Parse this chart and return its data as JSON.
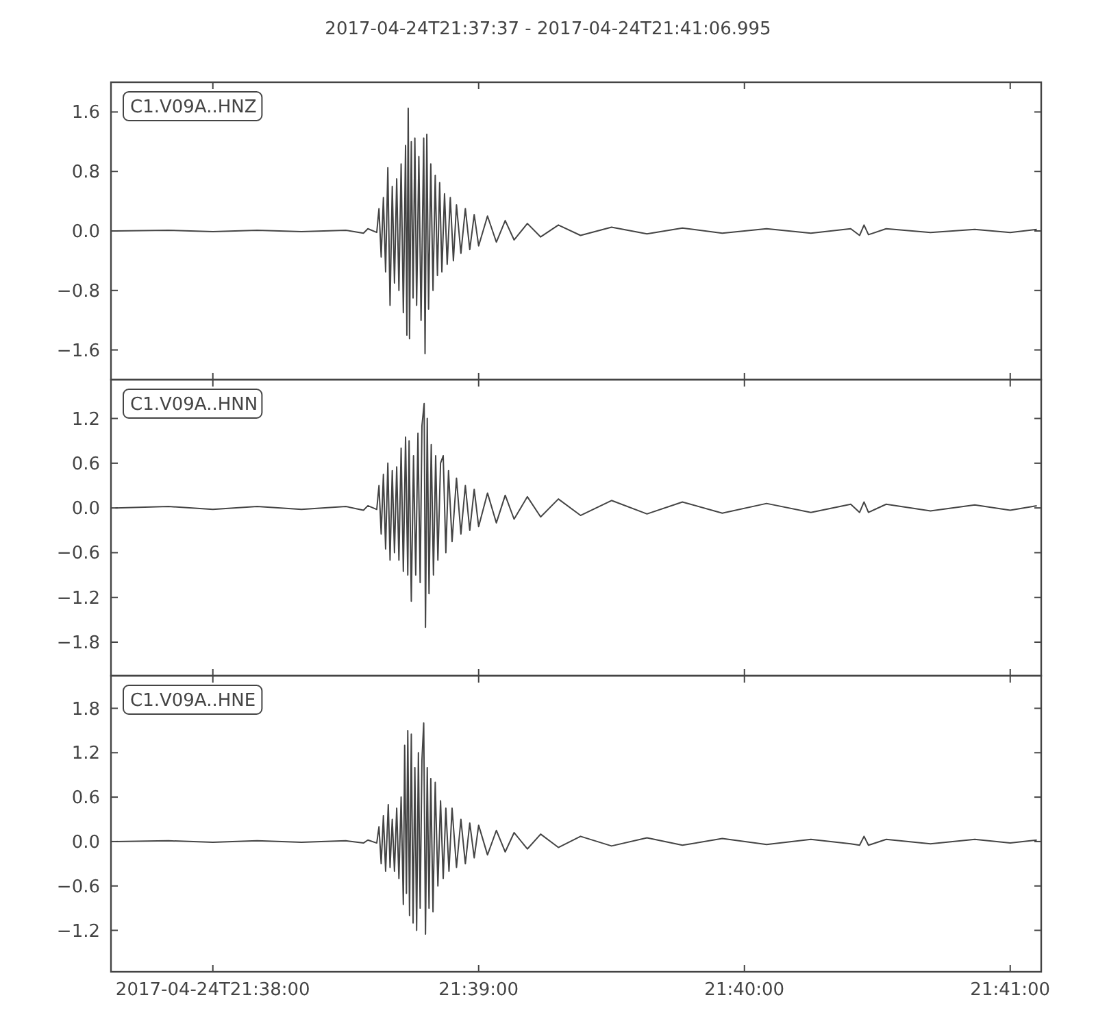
{
  "chart_data": [
    {
      "type": "line",
      "title": "2017-04-24T21:37:37  -  2017-04-24T21:41:06.995",
      "legend": "top left",
      "grid": false,
      "marker": "none",
      "tick_labels": "y",
      "xlim": [
        "2017-04-24T21:37:37",
        "2017-04-24T21:41:06.995"
      ],
      "xticks": [
        {
          "value": "2017-04-24T21:38:00",
          "label": null
        },
        {
          "value": "2017-04-24T21:39:00",
          "label": null
        },
        {
          "value": "2017-04-24T21:40:00",
          "label": null
        },
        {
          "value": "2017-04-24T21:41:00",
          "label": null
        }
      ],
      "ylim": [
        -2.0,
        2.0
      ],
      "yticks": [
        {
          "value": -1.6,
          "label": "−1.6"
        },
        {
          "value": -0.8,
          "label": "−0.8"
        },
        {
          "value": 0,
          "label": "0.0"
        },
        0.8,
        1.6
      ],
      "series": [
        {
          "name": "C1.V09A..HNZ",
          "color": "#444444",
          "x": [
            "2017-04-24T21:37:38",
            "2017-04-24T21:37:50",
            "2017-04-24T21:38:00",
            "2017-04-24T21:38:10",
            "2017-04-24T21:38:20",
            "2017-04-24T21:38:30",
            "2017-04-24T21:38:34",
            "2017-04-24T21:38:35",
            "2017-04-24T21:38:37",
            "2017-04-24T21:38:37.5",
            "2017-04-24T21:38:38",
            "2017-04-24T21:38:38.5",
            "2017-04-24T21:38:39",
            "2017-04-24T21:38:39.5",
            "2017-04-24T21:38:40",
            "2017-04-24T21:38:40.5",
            "2017-04-24T21:38:41",
            "2017-04-24T21:38:41.5",
            "2017-04-24T21:38:42",
            "2017-04-24T21:38:42.5",
            "2017-04-24T21:38:43",
            "2017-04-24T21:38:43.5",
            "2017-04-24T21:38:43.8",
            "2017-04-24T21:38:44.1",
            "2017-04-24T21:38:44.4",
            "2017-04-24T21:38:44.8",
            "2017-04-24T21:38:45.2",
            "2017-04-24T21:38:45.6",
            "2017-04-24T21:38:46",
            "2017-04-24T21:38:46.5",
            "2017-04-24T21:38:47",
            "2017-04-24T21:38:47.6",
            "2017-04-24T21:38:47.9",
            "2017-04-24T21:38:48.3",
            "2017-04-24T21:38:48.7",
            "2017-04-24T21:38:49.2",
            "2017-04-24T21:38:49.7",
            "2017-04-24T21:38:50.2",
            "2017-04-24T21:38:50.7",
            "2017-04-24T21:38:51.2",
            "2017-04-24T21:38:51.7",
            "2017-04-24T21:38:52.3",
            "2017-04-24T21:38:52.9",
            "2017-04-24T21:38:53.6",
            "2017-04-24T21:38:54.3",
            "2017-04-24T21:38:55",
            "2017-04-24T21:38:56",
            "2017-04-24T21:38:57",
            "2017-04-24T21:38:58",
            "2017-04-24T21:38:59",
            "2017-04-24T21:39:00",
            "2017-04-24T21:39:02",
            "2017-04-24T21:39:04",
            "2017-04-24T21:39:06",
            "2017-04-24T21:39:08",
            "2017-04-24T21:39:11",
            "2017-04-24T21:39:14",
            "2017-04-24T21:39:18",
            "2017-04-24T21:39:23",
            "2017-04-24T21:39:30",
            "2017-04-24T21:39:38",
            "2017-04-24T21:39:46",
            "2017-04-24T21:39:55",
            "2017-04-24T21:40:05",
            "2017-04-24T21:40:15",
            "2017-04-24T21:40:24",
            "2017-04-24T21:40:26",
            "2017-04-24T21:40:27",
            "2017-04-24T21:40:28",
            "2017-04-24T21:40:32",
            "2017-04-24T21:40:42",
            "2017-04-24T21:40:52",
            "2017-04-24T21:41:00",
            "2017-04-24T21:41:06"
          ],
          "values": [
            0,
            0.01,
            -0.01,
            0.01,
            -0.01,
            0.01,
            -0.03,
            0.03,
            -0.02,
            0.3,
            -0.35,
            0.45,
            -0.55,
            0.85,
            -1.0,
            0.6,
            -0.7,
            0.7,
            -0.8,
            0.9,
            -1.1,
            1.15,
            -1.4,
            1.65,
            -1.45,
            1.2,
            -0.9,
            1.25,
            -1.0,
            1.0,
            -1.2,
            1.25,
            -1.65,
            1.3,
            -1.05,
            0.9,
            -0.8,
            0.75,
            -0.6,
            0.65,
            -0.55,
            0.5,
            -0.45,
            0.45,
            -0.4,
            0.35,
            -0.3,
            0.3,
            -0.25,
            0.22,
            -0.2,
            0.2,
            -0.15,
            0.14,
            -0.12,
            0.1,
            -0.08,
            0.08,
            -0.06,
            0.05,
            -0.04,
            0.04,
            -0.03,
            0.03,
            -0.03,
            0.03,
            -0.06,
            0.08,
            -0.05,
            0.03,
            -0.02,
            0.02,
            -0.02,
            0.02
          ]
        }
      ]
    },
    {
      "type": "line",
      "legend": "top left",
      "grid": false,
      "marker": "none",
      "tick_labels": "y",
      "xlim": [
        "2017-04-24T21:37:37",
        "2017-04-24T21:41:06.995"
      ],
      "xticks": [
        {
          "value": "2017-04-24T21:38:00",
          "label": null
        },
        {
          "value": "2017-04-24T21:39:00",
          "label": null
        },
        {
          "value": "2017-04-24T21:40:00",
          "label": null
        },
        {
          "value": "2017-04-24T21:41:00",
          "label": null
        }
      ],
      "ylim": [
        -2.25,
        1.72
      ],
      "yticks": [
        {
          "value": -1.8,
          "label": "−1.8"
        },
        {
          "value": -1.2,
          "label": "−1.2"
        },
        {
          "value": -0.6,
          "label": "−0.6"
        },
        {
          "value": 0,
          "label": "0.0"
        },
        0.6,
        1.2
      ],
      "series": [
        {
          "name": "C1.V09A..HNN",
          "color": "#444444",
          "x": [
            "2017-04-24T21:37:38",
            "2017-04-24T21:37:50",
            "2017-04-24T21:38:00",
            "2017-04-24T21:38:10",
            "2017-04-24T21:38:20",
            "2017-04-24T21:38:30",
            "2017-04-24T21:38:34",
            "2017-04-24T21:38:35",
            "2017-04-24T21:38:37",
            "2017-04-24T21:38:37.5",
            "2017-04-24T21:38:38",
            "2017-04-24T21:38:38.5",
            "2017-04-24T21:38:39",
            "2017-04-24T21:38:39.5",
            "2017-04-24T21:38:40",
            "2017-04-24T21:38:40.5",
            "2017-04-24T21:38:41",
            "2017-04-24T21:38:41.5",
            "2017-04-24T21:38:42",
            "2017-04-24T21:38:42.5",
            "2017-04-24T21:38:43",
            "2017-04-24T21:38:43.5",
            "2017-04-24T21:38:44",
            "2017-04-24T21:38:44.3",
            "2017-04-24T21:38:44.8",
            "2017-04-24T21:38:45.3",
            "2017-04-24T21:38:45.8",
            "2017-04-24T21:38:46.3",
            "2017-04-24T21:38:46.8",
            "2017-04-24T21:38:47.2",
            "2017-04-24T21:38:47.7",
            "2017-04-24T21:38:48",
            "2017-04-24T21:38:48.4",
            "2017-04-24T21:38:48.8",
            "2017-04-24T21:38:49.3",
            "2017-04-24T21:38:49.8",
            "2017-04-24T21:38:50.3",
            "2017-04-24T21:38:50.8",
            "2017-04-24T21:38:51.4",
            "2017-04-24T21:38:52",
            "2017-04-24T21:38:52.6",
            "2017-04-24T21:38:53.2",
            "2017-04-24T21:38:54",
            "2017-04-24T21:38:55",
            "2017-04-24T21:38:56",
            "2017-04-24T21:38:57",
            "2017-04-24T21:38:58",
            "2017-04-24T21:38:59",
            "2017-04-24T21:39:00",
            "2017-04-24T21:39:02",
            "2017-04-24T21:39:04",
            "2017-04-24T21:39:06",
            "2017-04-24T21:39:08",
            "2017-04-24T21:39:11",
            "2017-04-24T21:39:14",
            "2017-04-24T21:39:18",
            "2017-04-24T21:39:23",
            "2017-04-24T21:39:30",
            "2017-04-24T21:39:38",
            "2017-04-24T21:39:46",
            "2017-04-24T21:39:55",
            "2017-04-24T21:40:05",
            "2017-04-24T21:40:15",
            "2017-04-24T21:40:24",
            "2017-04-24T21:40:26",
            "2017-04-24T21:40:27",
            "2017-04-24T21:40:28",
            "2017-04-24T21:40:32",
            "2017-04-24T21:40:42",
            "2017-04-24T21:40:52",
            "2017-04-24T21:41:00",
            "2017-04-24T21:41:06"
          ],
          "values": [
            0,
            0.02,
            -0.02,
            0.02,
            -0.02,
            0.02,
            -0.03,
            0.03,
            -0.02,
            0.3,
            -0.35,
            0.45,
            -0.55,
            0.6,
            -0.7,
            0.5,
            -0.6,
            0.55,
            -0.7,
            0.8,
            -0.85,
            0.95,
            -0.9,
            0.9,
            -1.25,
            0.7,
            -0.9,
            1.0,
            -1.0,
            1.1,
            1.4,
            -1.6,
            1.2,
            -1.15,
            0.85,
            -0.9,
            0.7,
            -0.7,
            0.6,
            0.7,
            -0.6,
            0.5,
            -0.45,
            0.4,
            -0.35,
            0.3,
            -0.3,
            0.25,
            -0.25,
            0.2,
            -0.2,
            0.17,
            -0.15,
            0.15,
            -0.12,
            0.12,
            -0.1,
            0.1,
            -0.08,
            0.08,
            -0.07,
            0.06,
            -0.06,
            0.05,
            -0.06,
            0.08,
            -0.06,
            0.05,
            -0.04,
            0.04,
            -0.03,
            0.03
          ]
        }
      ]
    },
    {
      "type": "line",
      "legend": "top left",
      "grid": false,
      "marker": "none",
      "xlim": [
        "2017-04-24T21:37:37",
        "2017-04-24T21:41:06.995"
      ],
      "xticks": [
        "2017-04-24T21:38:00",
        {
          "value": "2017-04-24T21:39:00",
          "label": "21:39:00"
        },
        {
          "value": "2017-04-24T21:40:00",
          "label": "21:40:00"
        },
        {
          "value": "2017-04-24T21:41:00",
          "label": "21:41:00"
        }
      ],
      "ylim": [
        -1.76,
        2.24
      ],
      "yticks": [
        {
          "value": -1.2,
          "label": "−1.2"
        },
        {
          "value": -0.6,
          "label": "−0.6"
        },
        {
          "value": 0,
          "label": "0.0"
        },
        0.6,
        1.2,
        1.8
      ],
      "series": [
        {
          "name": "C1.V09A..HNE",
          "color": "#444444",
          "x": [
            "2017-04-24T21:37:38",
            "2017-04-24T21:37:50",
            "2017-04-24T21:38:00",
            "2017-04-24T21:38:10",
            "2017-04-24T21:38:20",
            "2017-04-24T21:38:30",
            "2017-04-24T21:38:34",
            "2017-04-24T21:38:35",
            "2017-04-24T21:38:37",
            "2017-04-24T21:38:37.5",
            "2017-04-24T21:38:38",
            "2017-04-24T21:38:38.5",
            "2017-04-24T21:38:39",
            "2017-04-24T21:38:39.6",
            "2017-04-24T21:38:40",
            "2017-04-24T21:38:40.5",
            "2017-04-24T21:38:41",
            "2017-04-24T21:38:41.5",
            "2017-04-24T21:38:42",
            "2017-04-24T21:38:42.5",
            "2017-04-24T21:38:43",
            "2017-04-24T21:38:43.3",
            "2017-04-24T21:38:43.7",
            "2017-04-24T21:38:44",
            "2017-04-24T21:38:44.4",
            "2017-04-24T21:38:44.8",
            "2017-04-24T21:38:45.2",
            "2017-04-24T21:38:45.6",
            "2017-04-24T21:38:46",
            "2017-04-24T21:38:46.4",
            "2017-04-24T21:38:46.8",
            "2017-04-24T21:38:47.2",
            "2017-04-24T21:38:47.6",
            "2017-04-24T21:38:48",
            "2017-04-24T21:38:48.4",
            "2017-04-24T21:38:48.8",
            "2017-04-24T21:38:49.2",
            "2017-04-24T21:38:49.7",
            "2017-04-24T21:38:50.2",
            "2017-04-24T21:38:50.8",
            "2017-04-24T21:38:51.4",
            "2017-04-24T21:38:52",
            "2017-04-24T21:38:52.6",
            "2017-04-24T21:38:53.3",
            "2017-04-24T21:38:54",
            "2017-04-24T21:38:55",
            "2017-04-24T21:38:56",
            "2017-04-24T21:38:57",
            "2017-04-24T21:38:58",
            "2017-04-24T21:38:59",
            "2017-04-24T21:39:00",
            "2017-04-24T21:39:02",
            "2017-04-24T21:39:04",
            "2017-04-24T21:39:06",
            "2017-04-24T21:39:08",
            "2017-04-24T21:39:11",
            "2017-04-24T21:39:14",
            "2017-04-24T21:39:18",
            "2017-04-24T21:39:23",
            "2017-04-24T21:39:30",
            "2017-04-24T21:39:38",
            "2017-04-24T21:39:46",
            "2017-04-24T21:39:55",
            "2017-04-24T21:40:05",
            "2017-04-24T21:40:15",
            "2017-04-24T21:40:24",
            "2017-04-24T21:40:26",
            "2017-04-24T21:40:27",
            "2017-04-24T21:40:28",
            "2017-04-24T21:40:32",
            "2017-04-24T21:40:42",
            "2017-04-24T21:40:52",
            "2017-04-24T21:41:00",
            "2017-04-24T21:41:06"
          ],
          "values": [
            0,
            0.01,
            -0.01,
            0.01,
            -0.01,
            0.01,
            -0.02,
            0.02,
            -0.02,
            0.2,
            -0.3,
            0.35,
            -0.4,
            0.5,
            -0.35,
            0.3,
            -0.4,
            0.45,
            -0.5,
            0.6,
            -0.85,
            1.3,
            -0.7,
            1.5,
            -1.0,
            1.45,
            -1.1,
            1.0,
            -1.2,
            1.2,
            -0.9,
            1.1,
            1.6,
            -1.25,
            1.0,
            -0.9,
            0.85,
            -0.95,
            0.8,
            -0.6,
            0.55,
            -0.5,
            0.45,
            -0.4,
            0.45,
            -0.35,
            0.3,
            -0.3,
            0.25,
            -0.22,
            0.22,
            -0.18,
            0.15,
            -0.14,
            0.12,
            -0.1,
            0.1,
            -0.08,
            0.07,
            -0.06,
            0.05,
            -0.05,
            0.04,
            -0.04,
            0.03,
            -0.03,
            -0.05,
            0.07,
            -0.05,
            0.03,
            -0.03,
            0.03,
            -0.02,
            0.02
          ]
        }
      ]
    }
  ]
}
